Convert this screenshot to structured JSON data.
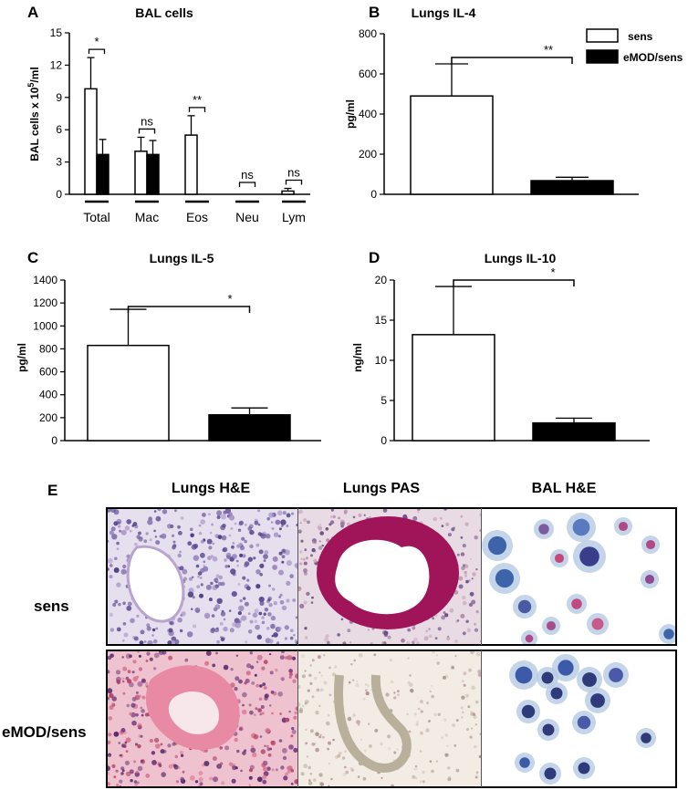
{
  "chart_data": [
    {
      "id": "A",
      "type": "bar",
      "title": "BAL cells",
      "ylabel_main": "BAL cells x 10",
      "ylabel_sup": "5",
      "ylabel_tail": "/ml",
      "ylim": [
        0,
        15
      ],
      "yticks": [
        "0",
        "3",
        "6",
        "9",
        "12",
        "15"
      ],
      "categories": [
        "Total",
        "Mac",
        "Eos",
        "Neu",
        "Lym"
      ],
      "series": [
        {
          "name": "sens",
          "values": [
            9.8,
            4.0,
            5.5,
            0.0,
            0.3
          ],
          "errors": [
            2.9,
            1.3,
            1.8,
            0.0,
            0.25
          ]
        },
        {
          "name": "eMOD/sens",
          "values": [
            3.7,
            3.7,
            0.0,
            0.0,
            0.0
          ],
          "errors": [
            1.4,
            1.3,
            0.0,
            0.0,
            0.0
          ]
        }
      ],
      "significance": [
        "*",
        "ns",
        "**",
        "ns",
        "ns"
      ]
    },
    {
      "id": "B",
      "type": "bar",
      "title": "Lungs IL-4",
      "ylabel": "pg/ml",
      "ylim": [
        0,
        800
      ],
      "yticks": [
        "0",
        "200",
        "400",
        "600",
        "800"
      ],
      "categories": [
        "sens",
        "eMOD/sens"
      ],
      "values": [
        490,
        68
      ],
      "errors": [
        160,
        17
      ],
      "significance": "**"
    },
    {
      "id": "C",
      "type": "bar",
      "title": "Lungs  IL-5",
      "ylabel": "pg/ml",
      "ylim": [
        0,
        1400
      ],
      "yticks": [
        "0",
        "200",
        "400",
        "600",
        "800",
        "1000",
        "1200",
        "1400"
      ],
      "categories": [
        "sens",
        "eMOD/sens"
      ],
      "values": [
        830,
        225
      ],
      "errors": [
        315,
        60
      ],
      "significance": "*"
    },
    {
      "id": "D",
      "type": "bar",
      "title": "Lungs IL-10",
      "ylabel": "ng/ml",
      "ylim": [
        0,
        20
      ],
      "yticks": [
        "0",
        "5",
        "10",
        "15",
        "20"
      ],
      "categories": [
        "sens",
        "eMOD/sens"
      ],
      "values": [
        13.2,
        2.2
      ],
      "errors": [
        6.0,
        0.6
      ],
      "significance": "*"
    }
  ],
  "legend": {
    "items": [
      "sens",
      "eMOD/sens"
    ],
    "placement": "top-right"
  },
  "panel_e": {
    "label": "E",
    "columns": [
      "Lungs H&E",
      "Lungs PAS",
      "BAL H&E"
    ],
    "rows": [
      "sens",
      "eMOD/sens"
    ]
  },
  "colors": {
    "sens_fill": "#ffffff",
    "emod_fill": "#000000",
    "he_lung_light": "#d8cde6",
    "he_lung_pink": "#e58fa6",
    "pas_magenta": "#a0155a",
    "bal_blue": "#3a5aa8"
  }
}
